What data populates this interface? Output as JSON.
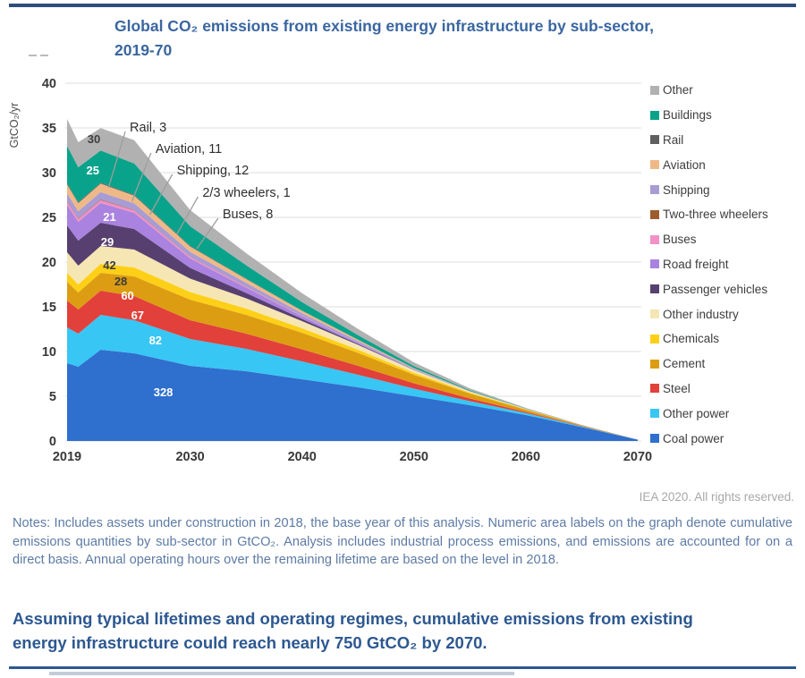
{
  "chart_data": {
    "type": "area",
    "stacked": true,
    "title": "Global CO₂ emissions from existing energy infrastructure by sub-sector,\n2019-70",
    "ylabel": "GtCO₂/yr",
    "ylim": [
      0,
      40
    ],
    "yticks": [
      0,
      5,
      10,
      15,
      20,
      25,
      30,
      35,
      40
    ],
    "xticks": [
      2019,
      2030,
      2040,
      2050,
      2060,
      2070
    ],
    "grid": "horizontal",
    "legend_position": "right",
    "x": [
      2019,
      2020,
      2022,
      2025,
      2030,
      2035,
      2040,
      2045,
      2050,
      2055,
      2060,
      2065,
      2070
    ],
    "series": [
      {
        "name": "Coal power",
        "color": "#2f6fce",
        "cumulative_gtco2": 328,
        "values": [
          8.7,
          8.3,
          10.2,
          9.8,
          8.4,
          7.8,
          6.9,
          6.0,
          5.0,
          4.0,
          2.9,
          1.55,
          0.15
        ]
      },
      {
        "name": "Other power",
        "color": "#38c6f4",
        "cumulative_gtco2": 82,
        "values": [
          4.0,
          3.7,
          3.9,
          3.7,
          3.0,
          2.5,
          2.0,
          1.4,
          0.85,
          0.45,
          0.22,
          0.08,
          0
        ]
      },
      {
        "name": "Steel",
        "color": "#e2403a",
        "cumulative_gtco2": 67,
        "values": [
          3.0,
          2.7,
          2.7,
          2.7,
          2.1,
          1.7,
          1.35,
          1.0,
          0.6,
          0.3,
          0.13,
          0.04,
          0
        ]
      },
      {
        "name": "Cement",
        "color": "#dd9d13",
        "cumulative_gtco2": 60,
        "values": [
          2.1,
          1.9,
          2.0,
          2.2,
          2.3,
          2.1,
          1.85,
          1.45,
          0.95,
          0.55,
          0.25,
          0.08,
          0
        ]
      },
      {
        "name": "Chemicals",
        "color": "#fdd017",
        "cumulative_gtco2": 28,
        "values": [
          1.0,
          0.9,
          1.0,
          1.0,
          0.85,
          0.7,
          0.5,
          0.35,
          0.22,
          0.1,
          0.04,
          0,
          0
        ]
      },
      {
        "name": "Other industry",
        "color": "#f5e6b4",
        "cumulative_gtco2": 42,
        "values": [
          2.3,
          2.1,
          2.0,
          2.0,
          1.5,
          1.15,
          0.8,
          0.55,
          0.3,
          0.13,
          0.04,
          0,
          0
        ]
      },
      {
        "name": "Passenger vehicles",
        "color": "#57406f",
        "cumulative_gtco2": 29,
        "values": [
          3.0,
          2.8,
          2.6,
          2.3,
          1.2,
          0.6,
          0.25,
          0.1,
          0.03,
          0,
          0,
          0,
          0
        ]
      },
      {
        "name": "Road freight",
        "color": "#a983df",
        "cumulative_gtco2": 21,
        "values": [
          2.3,
          2.1,
          2.2,
          1.8,
          1.05,
          0.6,
          0.3,
          0.12,
          0.04,
          0,
          0,
          0,
          0
        ]
      },
      {
        "name": "Buses",
        "color": "#f191c7",
        "cumulative_gtco2": 8,
        "values": [
          0.35,
          0.32,
          0.33,
          0.27,
          0.16,
          0.09,
          0.04,
          0.02,
          0,
          0,
          0,
          0,
          0
        ]
      },
      {
        "name": "Two-three wheelers",
        "color": "#9e5c2d",
        "cumulative_gtco2": 1,
        "values": [
          0.08,
          0.07,
          0.07,
          0.05,
          0.03,
          0.02,
          0.01,
          0,
          0,
          0,
          0,
          0,
          0
        ]
      },
      {
        "name": "Shipping",
        "color": "#a89cd4",
        "cumulative_gtco2": 12,
        "values": [
          0.85,
          0.8,
          0.82,
          0.75,
          0.55,
          0.42,
          0.28,
          0.17,
          0.08,
          0.03,
          0,
          0,
          0
        ]
      },
      {
        "name": "Aviation",
        "color": "#efb987",
        "cumulative_gtco2": 11,
        "values": [
          1.0,
          0.9,
          0.95,
          0.85,
          0.6,
          0.42,
          0.27,
          0.15,
          0.07,
          0.02,
          0,
          0,
          0
        ]
      },
      {
        "name": "Rail",
        "color": "#5f5f5f",
        "cumulative_gtco2": 3,
        "values": [
          0.12,
          0.11,
          0.11,
          0.1,
          0.07,
          0.05,
          0.03,
          0.02,
          0.01,
          0,
          0,
          0,
          0
        ]
      },
      {
        "name": "Buildings",
        "color": "#09a38b",
        "cumulative_gtco2": 25,
        "values": [
          4.2,
          3.9,
          3.6,
          3.5,
          2.2,
          1.5,
          0.95,
          0.5,
          0.22,
          0.08,
          0.02,
          0,
          0
        ]
      },
      {
        "name": "Other",
        "color": "#b1b1b1",
        "cumulative_gtco2": 30,
        "values": [
          3.0,
          2.8,
          2.5,
          2.6,
          1.8,
          1.35,
          1.0,
          0.7,
          0.42,
          0.22,
          0.1,
          0.04,
          0
        ]
      }
    ],
    "legend_order_top_to_bottom": [
      "Other",
      "Buildings",
      "Rail",
      "Aviation",
      "Shipping",
      "Two-three wheelers",
      "Buses",
      "Road freight",
      "Passenger vehicles",
      "Other industry",
      "Chemicals",
      "Cement",
      "Steel",
      "Other power",
      "Coal power"
    ],
    "area_labels": [
      {
        "text": "30",
        "year": 2021.4,
        "value": 33.7,
        "color": "#3f3f3f"
      },
      {
        "text": "25",
        "year": 2021.3,
        "value": 30.2,
        "color": "#ffffff"
      },
      {
        "text": "21",
        "year": 2022.8,
        "value": 25.0,
        "color": "#ffffff"
      },
      {
        "text": "29",
        "year": 2022.6,
        "value": 22.2,
        "color": "#ffffff"
      },
      {
        "text": "42",
        "year": 2022.8,
        "value": 19.6,
        "color": "#3b3b3b"
      },
      {
        "text": "28",
        "year": 2023.8,
        "value": 17.8,
        "color": "#3b3b3b"
      },
      {
        "text": "60",
        "year": 2024.4,
        "value": 16.2,
        "color": "#ffffff"
      },
      {
        "text": "67",
        "year": 2025.3,
        "value": 14.0,
        "color": "#ffffff"
      },
      {
        "text": "82",
        "year": 2026.9,
        "value": 11.2,
        "color": "#ffffff"
      },
      {
        "text": "328",
        "year": 2027.6,
        "value": 5.4,
        "color": "#ffffff"
      }
    ],
    "callouts": [
      {
        "text": "Rail, 3",
        "text_year": 2024.6,
        "text_value": 35.0,
        "end_year": 2022.7,
        "end_value": 28.3
      },
      {
        "text": "Aviation, 11",
        "text_year": 2026.9,
        "text_value": 32.6,
        "end_year": 2024.8,
        "end_value": 26.8
      },
      {
        "text": "Shipping, 12",
        "text_year": 2028.8,
        "text_value": 30.2,
        "end_year": 2026.4,
        "end_value": 25.3
      },
      {
        "text": "2/3 wheelers, 1",
        "text_year": 2031.1,
        "text_value": 27.7,
        "end_year": 2028.8,
        "end_value": 23.1
      },
      {
        "text": "Buses, 8",
        "text_year": 2032.9,
        "text_value": 25.3,
        "end_year": 2030.6,
        "end_value": 21.5
      }
    ]
  },
  "attribution": "IEA 2020. All rights reserved.",
  "notes": "Notes: Includes assets under construction in 2018, the base year of this analysis. Numeric area labels on the graph denote cumulative emissions quantities by sub-sector in GtCO₂. Analysis includes industrial process emissions, and emissions are accounted for on a direct basis. Annual operating hours over the remaining lifetime are based on the level in 2018.",
  "statement": "Assuming typical lifetimes and operating regimes, cumulative emissions from existing energy infrastructure could reach nearly 750 GtCO₂ by 2070."
}
